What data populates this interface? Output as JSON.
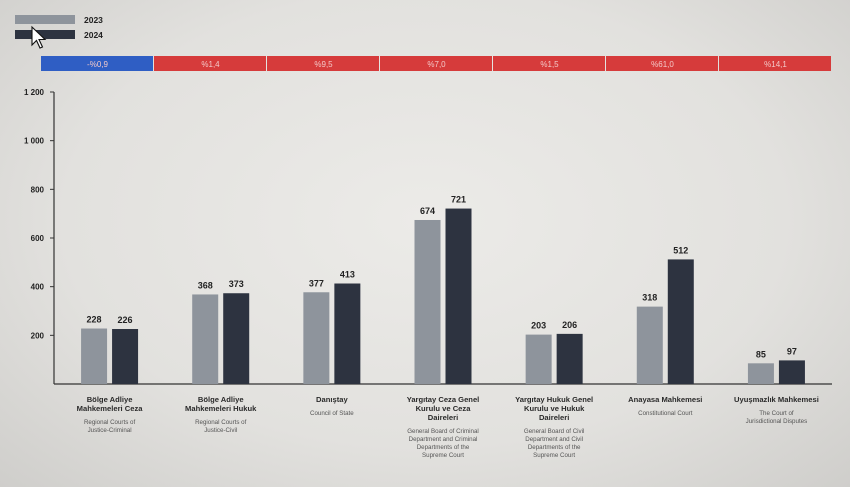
{
  "chart_data": {
    "type": "bar",
    "title": "",
    "xlabel": "",
    "ylabel": "",
    "ylim": [
      0,
      1200
    ],
    "y_ticks": [
      "200",
      "400",
      "600",
      "800",
      "1 000",
      "1 200"
    ],
    "y_tick_values": [
      200,
      400,
      600,
      800,
      1000,
      1200
    ],
    "grid": false,
    "legend_position": "top-left",
    "categories": [
      {
        "name": "Bölge Adliye Mahkemeleri Ceza",
        "name_lines": [
          "Bölge Adliye",
          "Mahkemeleri Ceza"
        ],
        "subtitle_lines": [
          "Regional Courts of",
          "Justice-Criminal"
        ]
      },
      {
        "name": "Bölge Adliye Mahkemeleri Hukuk",
        "name_lines": [
          "Bölge Adliye",
          "Mahkemeleri Hukuk"
        ],
        "subtitle_lines": [
          "Regional Courts of",
          "Justice-Civil"
        ]
      },
      {
        "name": "Danıştay",
        "name_lines": [
          "Danıştay"
        ],
        "subtitle_lines": [
          "Council of State"
        ]
      },
      {
        "name": "Yargıtay Ceza Genel Kurulu ve Ceza Daireleri",
        "name_lines": [
          "Yargıtay Ceza Genel",
          "Kurulu ve Ceza",
          "Daireleri"
        ],
        "subtitle_lines": [
          "General Board of Criminal",
          "Department and Criminal",
          "Departments of the",
          "Supreme Court"
        ]
      },
      {
        "name": "Yargıtay Hukuk Genel Kurulu ve Hukuk Daireleri",
        "name_lines": [
          "Yargıtay Hukuk Genel",
          "Kurulu ve Hukuk",
          "Daireleri"
        ],
        "subtitle_lines": [
          "General Board of Civil",
          "Department and Civil",
          "Departments of the",
          "Supreme Court"
        ]
      },
      {
        "name": "Anayasa Mahkemesi",
        "name_lines": [
          "Anayasa Mahkemesi"
        ],
        "subtitle_lines": [
          "Constitutional Court"
        ]
      },
      {
        "name": "Uyuşmazlık Mahkemesi",
        "name_lines": [
          "Uyuşmazlık Mahkemesi"
        ],
        "subtitle_lines": [
          "The Court of",
          "Jurisdictional Disputes"
        ]
      }
    ],
    "series": [
      {
        "name": "2023",
        "color": "#8e949c",
        "values": [
          228,
          368,
          377,
          674,
          203,
          318,
          85
        ]
      },
      {
        "name": "2024",
        "color": "#2d3340",
        "values": [
          226,
          373,
          413,
          721,
          206,
          512,
          97
        ]
      }
    ],
    "change_row": [
      {
        "label": "-%0,9",
        "direction": "down",
        "color": "#2f5ec4"
      },
      {
        "label": "%1,4",
        "direction": "up",
        "color": "#d63b3b"
      },
      {
        "label": "%9,5",
        "direction": "up",
        "color": "#d63b3b"
      },
      {
        "label": "%7,0",
        "direction": "up",
        "color": "#d63b3b"
      },
      {
        "label": "%1,5",
        "direction": "up",
        "color": "#d63b3b"
      },
      {
        "label": "%61,0",
        "direction": "up",
        "color": "#d63b3b"
      },
      {
        "label": "%14,1",
        "direction": "up",
        "color": "#d63b3b"
      }
    ]
  },
  "icons": {
    "cursor": "mouse-pointer-icon"
  }
}
